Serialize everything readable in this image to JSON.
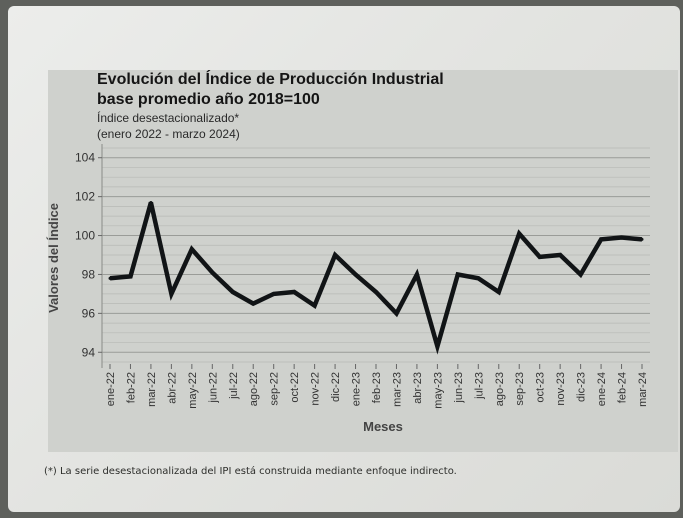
{
  "chart_data": {
    "type": "line",
    "title": "Evolución del Índice de Producción Industrial",
    "title_line2": "base promedio año 2018=100",
    "subtitle": "Índice desestacionalizado*",
    "subtitle_line2": "(enero 2022 - marzo 2024)",
    "xlabel": "Meses",
    "ylabel": "Valores del Índice",
    "ylim": [
      93.5,
      104.5
    ],
    "yticks": [
      94,
      96,
      98,
      100,
      102,
      104
    ],
    "grid": true,
    "line_color": "#111416",
    "categories": [
      "ene-22",
      "feb-22",
      "mar-22",
      "abr-22",
      "may-22",
      "jun-22",
      "jul-22",
      "ago-22",
      "sep-22",
      "oct-22",
      "nov-22",
      "dic-22",
      "ene-23",
      "feb-23",
      "mar-23",
      "abr-23",
      "may-23",
      "jun-23",
      "jul-23",
      "ago-23",
      "sep-23",
      "oct-23",
      "nov-23",
      "dic-23",
      "ene-24",
      "feb-24",
      "mar-24"
    ],
    "values": [
      97.8,
      97.9,
      101.7,
      97.0,
      99.3,
      98.1,
      97.1,
      96.5,
      97.0,
      97.1,
      96.4,
      99.0,
      98.0,
      97.1,
      96.0,
      98.0,
      94.3,
      98.0,
      97.8,
      97.1,
      100.1,
      98.9,
      99.0,
      98.0,
      99.8,
      99.9,
      99.8
    ]
  },
  "footnote": "(*) La serie desestacionalizada del IPI está construida mediante enfoque indirecto."
}
